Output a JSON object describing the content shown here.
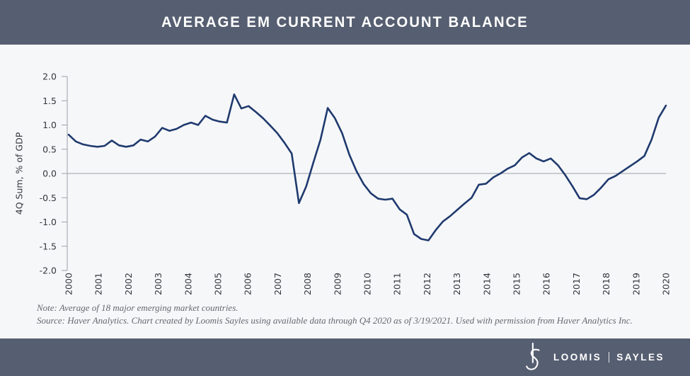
{
  "header": {
    "title": "AVERAGE EM CURRENT ACCOUNT BALANCE",
    "background_color": "#565e71",
    "text_color": "#ffffff"
  },
  "chart_data": {
    "type": "line",
    "title": "AVERAGE EM CURRENT ACCOUNT BALANCE",
    "xlabel": "",
    "ylabel": "4Q Sum, % of GDP",
    "ylim": [
      -2.0,
      2.0
    ],
    "ytick_labels": [
      "2.0",
      "1.5",
      "1.0",
      "0.5",
      "0.0",
      "-0.5",
      "-1.0",
      "-1.5",
      "-2.0"
    ],
    "x_tick_labels": [
      "2000",
      "2001",
      "2002",
      "2003",
      "2004",
      "2005",
      "2006",
      "2007",
      "2008",
      "2009",
      "2010",
      "2011",
      "2012",
      "2013",
      "2014",
      "2015",
      "2016",
      "2017",
      "2018",
      "2019",
      "2020"
    ],
    "x_frequency": "quarterly",
    "x_start": "2000 Q1",
    "x_end": "2020 Q4",
    "grid": false,
    "zero_line": true,
    "legend_position": "none",
    "line_color": "#1f3a6e",
    "background_color": "#f6f7f9",
    "series": [
      {
        "name": "Average EM current account balance (4Q sum, % of GDP)",
        "values": [
          0.8,
          0.66,
          0.6,
          0.57,
          0.55,
          0.57,
          0.68,
          0.58,
          0.55,
          0.58,
          0.7,
          0.66,
          0.76,
          0.94,
          0.88,
          0.92,
          1.0,
          1.05,
          1.0,
          1.19,
          1.11,
          1.07,
          1.05,
          1.63,
          1.34,
          1.39,
          1.27,
          1.14,
          0.99,
          0.83,
          0.63,
          0.41,
          -0.61,
          -0.27,
          0.22,
          0.7,
          1.35,
          1.14,
          0.83,
          0.39,
          0.05,
          -0.22,
          -0.41,
          -0.52,
          -0.54,
          -0.52,
          -0.74,
          -0.85,
          -1.25,
          -1.35,
          -1.38,
          -1.17,
          -0.99,
          -0.88,
          -0.75,
          -0.62,
          -0.5,
          -0.23,
          -0.21,
          -0.08,
          0.0,
          0.1,
          0.17,
          0.33,
          0.42,
          0.31,
          0.25,
          0.31,
          0.17,
          -0.03,
          -0.26,
          -0.51,
          -0.53,
          -0.44,
          -0.29,
          -0.12,
          -0.05,
          0.05,
          0.15,
          0.25,
          0.36,
          0.7,
          1.15,
          1.4
        ]
      }
    ]
  },
  "notes": {
    "line1": "Note: Average of 18 major emerging market countries.",
    "line2": "Source: Haver Analytics. Chart created by Loomis Sayles using available data through Q4 2020 as of 3/19/2021. Used with permission from Haver Analytics Inc."
  },
  "footer": {
    "monogram": "LS",
    "brand_left": "LOOMIS",
    "brand_right": "SAYLES",
    "background_color": "#565e71"
  }
}
